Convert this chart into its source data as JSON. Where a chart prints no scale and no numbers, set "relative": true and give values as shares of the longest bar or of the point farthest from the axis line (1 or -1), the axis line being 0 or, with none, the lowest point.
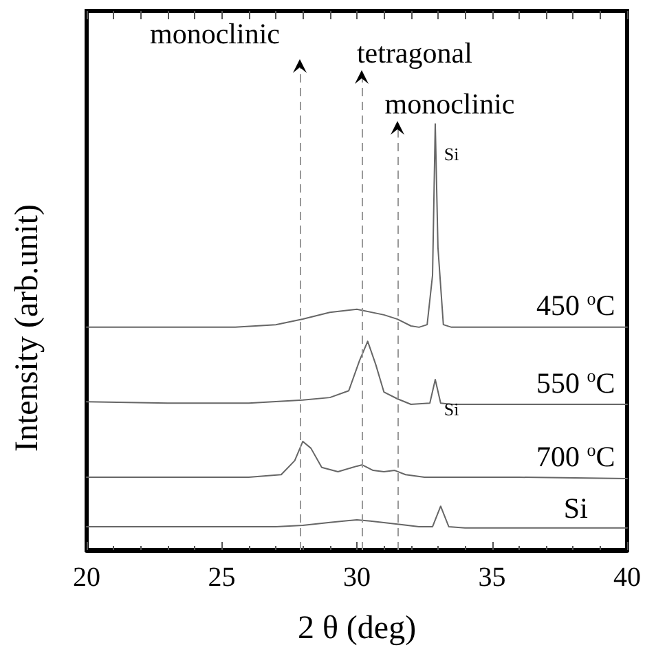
{
  "chart_data": {
    "type": "line",
    "relative": true,
    "xlabel": "2 θ (deg)",
    "ylabel": "Intensity (arb.unit)",
    "xlim": [
      20,
      40
    ],
    "xticks": [
      20,
      25,
      30,
      35,
      40
    ],
    "grid": false,
    "legend": false,
    "marker": "none",
    "line_style": "solid",
    "series": [
      {
        "name": "450 $^{o}$C",
        "color": "#666666",
        "x": [
          20,
          22,
          24,
          25.5,
          27,
          28,
          29,
          30,
          31,
          31.5,
          32,
          32.3,
          32.6,
          32.8,
          32.9,
          33.0,
          33.2,
          33.5,
          35,
          37,
          40
        ],
        "values": [
          0.523,
          0.523,
          0.523,
          0.523,
          0.529,
          0.542,
          0.558,
          0.565,
          0.552,
          0.542,
          0.526,
          0.523,
          0.529,
          0.645,
          1,
          0.71,
          0.529,
          0.523,
          0.523,
          0.523,
          0.523
        ]
      },
      {
        "name": "550 $^{o}$C",
        "color": "#666666",
        "x": [
          20,
          23,
          26,
          28,
          29,
          29.7,
          30.1,
          30.4,
          30.7,
          31,
          31.5,
          32,
          32.7,
          32.9,
          33.1,
          33.5,
          36,
          40
        ],
        "values": [
          0.348,
          0.345,
          0.345,
          0.352,
          0.358,
          0.374,
          0.445,
          0.49,
          0.435,
          0.371,
          0.355,
          0.342,
          0.345,
          0.4,
          0.345,
          0.342,
          0.342,
          0.342
        ]
      },
      {
        "name": "700 $^{o}$C",
        "color": "#666666",
        "x": [
          20,
          24,
          26,
          27.2,
          27.7,
          28,
          28.3,
          28.7,
          29.3,
          30,
          30.2,
          30.6,
          31,
          31.4,
          31.8,
          32.5,
          36,
          40
        ],
        "values": [
          0.171,
          0.171,
          0.171,
          0.177,
          0.21,
          0.255,
          0.239,
          0.194,
          0.184,
          0.197,
          0.2,
          0.187,
          0.184,
          0.187,
          0.177,
          0.171,
          0.171,
          0.168
        ]
      },
      {
        "name": "Si",
        "color": "#666666",
        "x": [
          20,
          24,
          27,
          28,
          29,
          30,
          30.5,
          31.5,
          32.3,
          32.8,
          33.1,
          33.4,
          34,
          37,
          40
        ],
        "values": [
          0.055,
          0.055,
          0.055,
          0.058,
          0.065,
          0.071,
          0.068,
          0.061,
          0.055,
          0.055,
          0.103,
          0.055,
          0.052,
          0.052,
          0.052
        ]
      }
    ],
    "ref_lines": [
      {
        "axis": "x",
        "value": 27.9,
        "label": "monoclinic",
        "color": "#999999",
        "line_style": "dashed"
      },
      {
        "axis": "x",
        "value": 30.2,
        "label": "tetragonal",
        "color": "#999999",
        "line_style": "dashed"
      },
      {
        "axis": "x",
        "value": 31.5,
        "label": "monoclinic",
        "color": "#999999",
        "line_style": "dashed"
      }
    ],
    "annotations": [
      "Si",
      "Si"
    ]
  }
}
